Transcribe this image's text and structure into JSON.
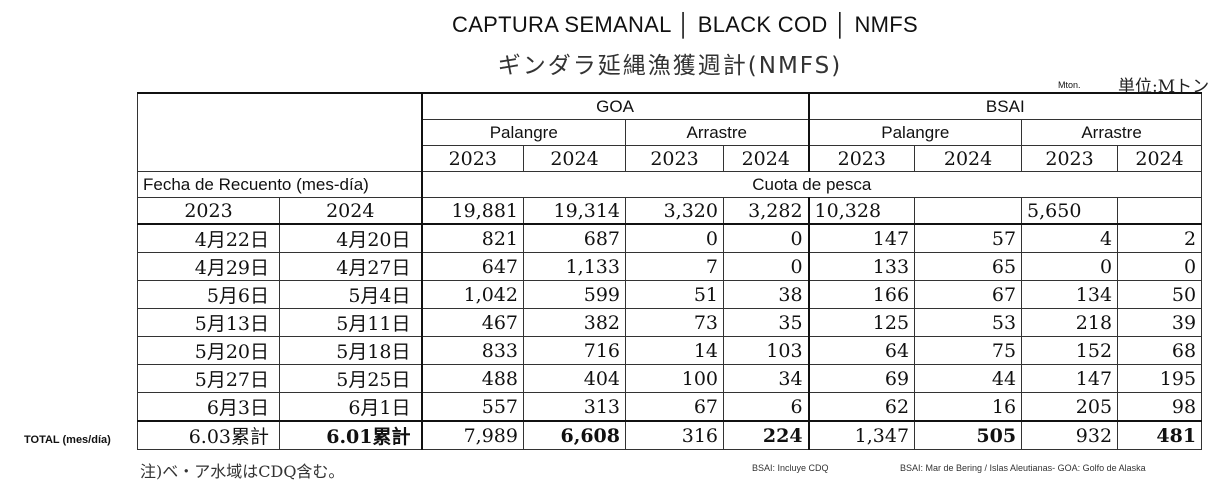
{
  "title_es": "CAPTURA SEMANAL │ BLACK COD │ NMFS",
  "title_ja": "ギンダラ延縄漁獲週計(NMFS)",
  "unit_small": "Mton.",
  "unit_ja": "単位:Mトン",
  "headers": {
    "goa": "GOA",
    "bsai": "BSAI",
    "palangre": "Palangre",
    "arrastre": "Arrastre",
    "fecha": "Fecha de Recuento (mes-día)",
    "cuota": "Cuota de pesca"
  },
  "years": [
    "2023",
    "2024",
    "2023",
    "2024",
    "2023",
    "2024",
    "2023",
    "2024"
  ],
  "quota_years": [
    "2023",
    "2024"
  ],
  "quota": [
    "19,881",
    "19,314",
    "3,320",
    "3,282",
    "10,328",
    "",
    "5,650",
    ""
  ],
  "rows": [
    {
      "d2023": "4月22日",
      "d2024": "4月20日",
      "values": [
        "821",
        "687",
        "0",
        "0",
        "147",
        "57",
        "4",
        "2"
      ]
    },
    {
      "d2023": "4月29日",
      "d2024": "4月27日",
      "values": [
        "647",
        "1,133",
        "7",
        "0",
        "133",
        "65",
        "0",
        "0"
      ]
    },
    {
      "d2023": "5月6日",
      "d2024": "5月4日",
      "values": [
        "1,042",
        "599",
        "51",
        "38",
        "166",
        "67",
        "134",
        "50"
      ]
    },
    {
      "d2023": "5月13日",
      "d2024": "5月11日",
      "values": [
        "467",
        "382",
        "73",
        "35",
        "125",
        "53",
        "218",
        "39"
      ]
    },
    {
      "d2023": "5月20日",
      "d2024": "5月18日",
      "values": [
        "833",
        "716",
        "14",
        "103",
        "64",
        "75",
        "152",
        "68"
      ]
    },
    {
      "d2023": "5月27日",
      "d2024": "5月25日",
      "values": [
        "488",
        "404",
        "100",
        "34",
        "69",
        "44",
        "147",
        "195"
      ]
    },
    {
      "d2023": "6月3日",
      "d2024": "6月1日",
      "values": [
        "557",
        "313",
        "67",
        "6",
        "62",
        "16",
        "205",
        "98"
      ]
    }
  ],
  "total": {
    "label": "TOTAL (mes/día)",
    "d2023": "6.03累計",
    "d2024": "6.01累計",
    "values": [
      "7,989",
      "6,608",
      "316",
      "224",
      "1,347",
      "505",
      "932",
      "481"
    ]
  },
  "note_ja": "注)ベ・ア水域はCDQ含む。",
  "foot1": "BSAI: Incluye CDQ",
  "foot2": "BSAI: Mar de Bering / Islas Aleutianas- GOA: Golfo de Alaska"
}
